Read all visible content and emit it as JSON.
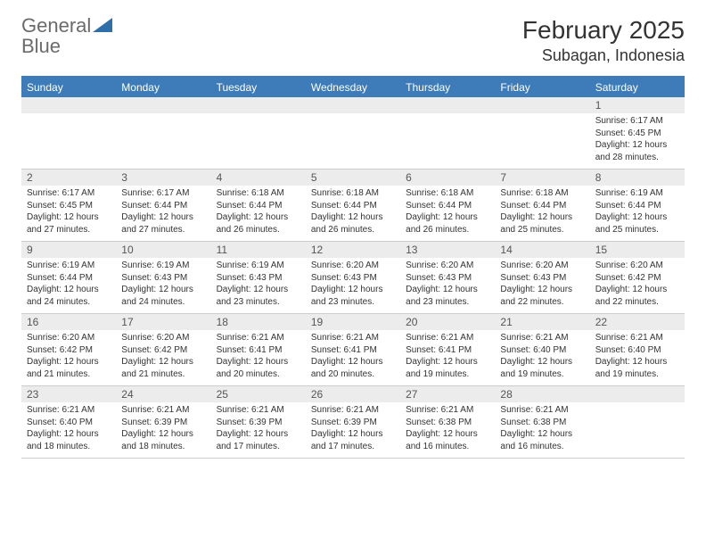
{
  "logo": {
    "text1": "General",
    "text2": "Blue"
  },
  "title": "February 2025",
  "location": "Subagan, Indonesia",
  "colors": {
    "header_bar": "#3d7cb8",
    "band": "#ececec",
    "text": "#333333",
    "logo_gray": "#6b6b6b",
    "logo_blue": "#2f6fa8"
  },
  "weekdays": [
    "Sunday",
    "Monday",
    "Tuesday",
    "Wednesday",
    "Thursday",
    "Friday",
    "Saturday"
  ],
  "weeks": [
    [
      {
        "n": "",
        "body": ""
      },
      {
        "n": "",
        "body": ""
      },
      {
        "n": "",
        "body": ""
      },
      {
        "n": "",
        "body": ""
      },
      {
        "n": "",
        "body": ""
      },
      {
        "n": "",
        "body": ""
      },
      {
        "n": "1",
        "body": "Sunrise: 6:17 AM\nSunset: 6:45 PM\nDaylight: 12 hours and 28 minutes."
      }
    ],
    [
      {
        "n": "2",
        "body": "Sunrise: 6:17 AM\nSunset: 6:45 PM\nDaylight: 12 hours and 27 minutes."
      },
      {
        "n": "3",
        "body": "Sunrise: 6:17 AM\nSunset: 6:44 PM\nDaylight: 12 hours and 27 minutes."
      },
      {
        "n": "4",
        "body": "Sunrise: 6:18 AM\nSunset: 6:44 PM\nDaylight: 12 hours and 26 minutes."
      },
      {
        "n": "5",
        "body": "Sunrise: 6:18 AM\nSunset: 6:44 PM\nDaylight: 12 hours and 26 minutes."
      },
      {
        "n": "6",
        "body": "Sunrise: 6:18 AM\nSunset: 6:44 PM\nDaylight: 12 hours and 26 minutes."
      },
      {
        "n": "7",
        "body": "Sunrise: 6:18 AM\nSunset: 6:44 PM\nDaylight: 12 hours and 25 minutes."
      },
      {
        "n": "8",
        "body": "Sunrise: 6:19 AM\nSunset: 6:44 PM\nDaylight: 12 hours and 25 minutes."
      }
    ],
    [
      {
        "n": "9",
        "body": "Sunrise: 6:19 AM\nSunset: 6:44 PM\nDaylight: 12 hours and 24 minutes."
      },
      {
        "n": "10",
        "body": "Sunrise: 6:19 AM\nSunset: 6:43 PM\nDaylight: 12 hours and 24 minutes."
      },
      {
        "n": "11",
        "body": "Sunrise: 6:19 AM\nSunset: 6:43 PM\nDaylight: 12 hours and 23 minutes."
      },
      {
        "n": "12",
        "body": "Sunrise: 6:20 AM\nSunset: 6:43 PM\nDaylight: 12 hours and 23 minutes."
      },
      {
        "n": "13",
        "body": "Sunrise: 6:20 AM\nSunset: 6:43 PM\nDaylight: 12 hours and 23 minutes."
      },
      {
        "n": "14",
        "body": "Sunrise: 6:20 AM\nSunset: 6:43 PM\nDaylight: 12 hours and 22 minutes."
      },
      {
        "n": "15",
        "body": "Sunrise: 6:20 AM\nSunset: 6:42 PM\nDaylight: 12 hours and 22 minutes."
      }
    ],
    [
      {
        "n": "16",
        "body": "Sunrise: 6:20 AM\nSunset: 6:42 PM\nDaylight: 12 hours and 21 minutes."
      },
      {
        "n": "17",
        "body": "Sunrise: 6:20 AM\nSunset: 6:42 PM\nDaylight: 12 hours and 21 minutes."
      },
      {
        "n": "18",
        "body": "Sunrise: 6:21 AM\nSunset: 6:41 PM\nDaylight: 12 hours and 20 minutes."
      },
      {
        "n": "19",
        "body": "Sunrise: 6:21 AM\nSunset: 6:41 PM\nDaylight: 12 hours and 20 minutes."
      },
      {
        "n": "20",
        "body": "Sunrise: 6:21 AM\nSunset: 6:41 PM\nDaylight: 12 hours and 19 minutes."
      },
      {
        "n": "21",
        "body": "Sunrise: 6:21 AM\nSunset: 6:40 PM\nDaylight: 12 hours and 19 minutes."
      },
      {
        "n": "22",
        "body": "Sunrise: 6:21 AM\nSunset: 6:40 PM\nDaylight: 12 hours and 19 minutes."
      }
    ],
    [
      {
        "n": "23",
        "body": "Sunrise: 6:21 AM\nSunset: 6:40 PM\nDaylight: 12 hours and 18 minutes."
      },
      {
        "n": "24",
        "body": "Sunrise: 6:21 AM\nSunset: 6:39 PM\nDaylight: 12 hours and 18 minutes."
      },
      {
        "n": "25",
        "body": "Sunrise: 6:21 AM\nSunset: 6:39 PM\nDaylight: 12 hours and 17 minutes."
      },
      {
        "n": "26",
        "body": "Sunrise: 6:21 AM\nSunset: 6:39 PM\nDaylight: 12 hours and 17 minutes."
      },
      {
        "n": "27",
        "body": "Sunrise: 6:21 AM\nSunset: 6:38 PM\nDaylight: 12 hours and 16 minutes."
      },
      {
        "n": "28",
        "body": "Sunrise: 6:21 AM\nSunset: 6:38 PM\nDaylight: 12 hours and 16 minutes."
      },
      {
        "n": "",
        "body": ""
      }
    ]
  ]
}
